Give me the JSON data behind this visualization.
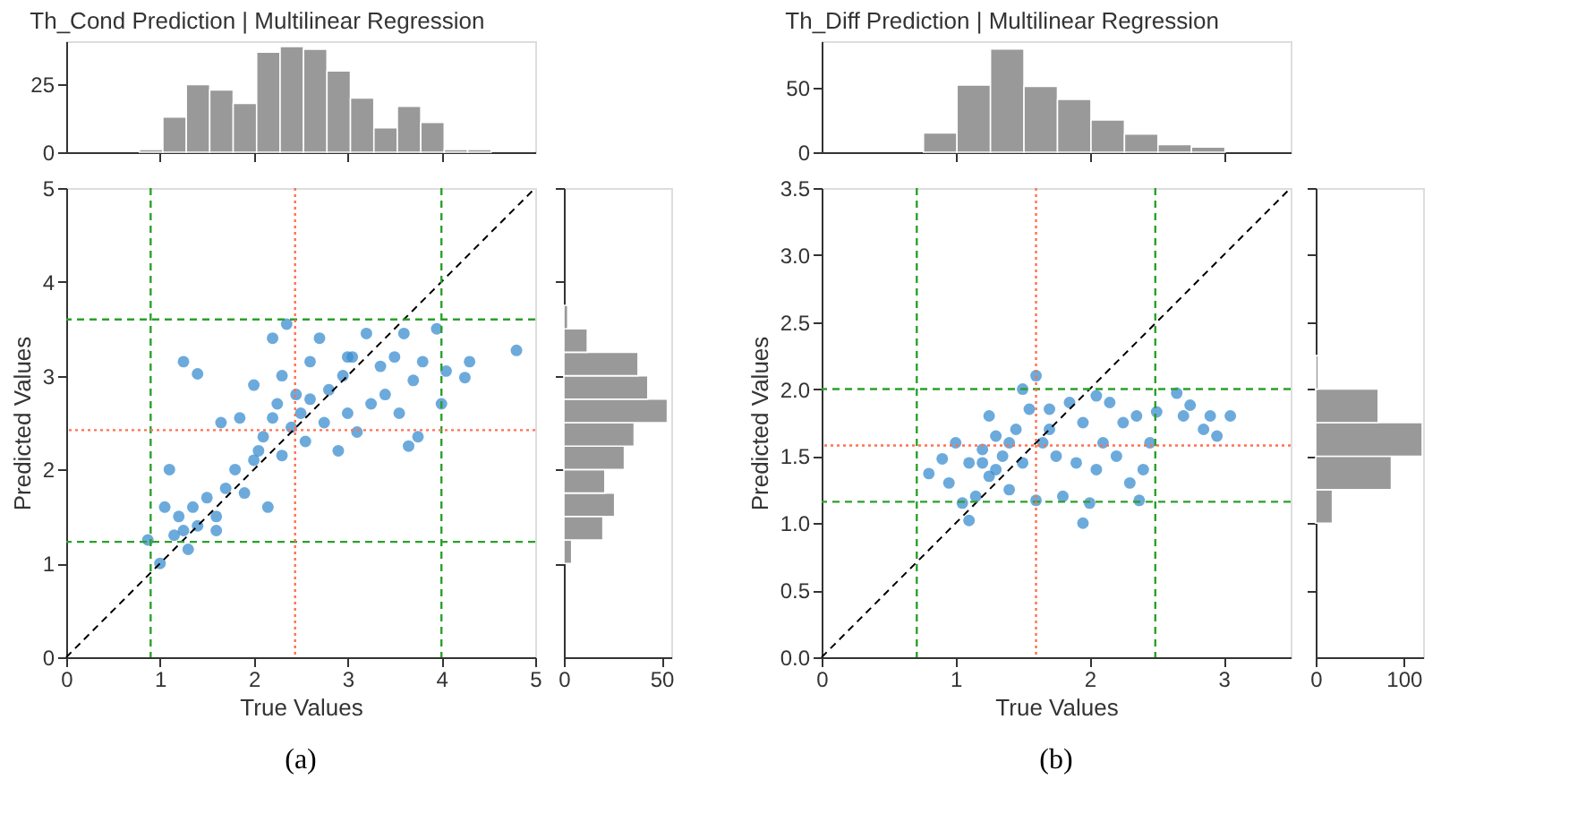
{
  "chart_data": [
    {
      "type": "scatter",
      "xlabel": "True Values",
      "ylabel": "Predicted Values",
      "annotations": [
        "(a)"
      ],
      "xlim": [
        0,
        5
      ],
      "ylim": [
        0,
        5
      ],
      "xticks": [
        0,
        1,
        2,
        3,
        4,
        5
      ],
      "yticks": [
        0,
        1,
        2,
        3,
        4,
        5
      ],
      "series": [
        {
          "type": "scatter",
          "marker": "circle",
          "color": "#3b8ed0",
          "x": [
            0.87,
            1.0,
            1.05,
            1.1,
            1.25,
            1.4,
            1.15,
            1.2,
            1.3,
            1.35,
            1.4,
            1.5,
            1.6,
            1.65,
            1.7,
            1.8,
            1.9,
            1.85,
            2.0,
            2.05,
            2.1,
            2.15,
            2.2,
            2.25,
            2.3,
            2.35,
            2.3,
            2.4,
            2.5,
            2.55,
            2.6,
            2.7,
            2.75,
            2.8,
            2.9,
            2.95,
            3.0,
            3.05,
            3.1,
            3.2,
            3.25,
            3.35,
            3.4,
            3.5,
            3.55,
            3.6,
            3.65,
            3.7,
            3.8,
            3.75,
            3.95,
            4.0,
            4.05,
            4.3,
            4.25,
            4.8,
            2.2,
            2.6,
            1.6,
            2.0,
            2.45,
            3.0,
            1.25
          ],
          "values": [
            1.25,
            1.0,
            1.6,
            2.0,
            3.15,
            3.02,
            1.3,
            1.5,
            1.15,
            1.6,
            1.4,
            1.7,
            1.35,
            2.5,
            1.8,
            2.0,
            1.75,
            2.55,
            2.9,
            2.2,
            2.35,
            1.6,
            3.4,
            2.7,
            3.0,
            3.55,
            2.15,
            2.45,
            2.6,
            2.3,
            3.15,
            3.4,
            2.5,
            2.85,
            2.2,
            3.0,
            2.6,
            3.2,
            2.4,
            3.45,
            2.7,
            3.1,
            2.8,
            3.2,
            2.6,
            3.45,
            2.25,
            2.95,
            3.15,
            2.35,
            3.5,
            2.7,
            3.05,
            3.15,
            2.98,
            3.27,
            2.55,
            2.75,
            1.5,
            2.1,
            2.8,
            3.2,
            1.35
          ]
        },
        {
          "type": "line",
          "color": "#000000",
          "line_style": "dashed",
          "x": [
            0,
            5
          ],
          "values": [
            0,
            5
          ]
        }
      ],
      "ref_lines": [
        {
          "axis": "x",
          "value": 0.9,
          "color": "#2ca02c",
          "line_style": "dashed"
        },
        {
          "axis": "x",
          "value": 4.0,
          "color": "#2ca02c",
          "line_style": "dashed"
        },
        {
          "axis": "y",
          "value": 1.23,
          "color": "#2ca02c",
          "line_style": "dashed"
        },
        {
          "axis": "y",
          "value": 3.6,
          "color": "#2ca02c",
          "line_style": "dashed"
        },
        {
          "axis": "x",
          "value": 2.44,
          "color": "#ff7050",
          "line_style": "dotted"
        },
        {
          "axis": "y",
          "value": 2.42,
          "color": "#ff7050",
          "line_style": "dotted"
        }
      ]
    },
    {
      "type": "histogram",
      "title": "Th_Cond Prediction | Multilinear Regression",
      "color": "#999999",
      "bins": [
        0.78,
        1.03,
        1.28,
        1.53,
        1.78,
        2.03,
        2.28,
        2.53,
        2.78,
        3.03,
        3.28,
        3.53,
        3.78,
        4.03,
        4.28,
        4.53
      ],
      "values": [
        1,
        13,
        25,
        23,
        18,
        37,
        39,
        38,
        30,
        20,
        9,
        17,
        11,
        1,
        1
      ],
      "xlim": [
        0,
        5
      ],
      "xticks": [
        1,
        2,
        3,
        4
      ],
      "ylim": [
        0,
        41
      ],
      "yticks": [
        0,
        25
      ],
      "tick_labels": "y"
    },
    {
      "type": "histogram",
      "orientation": "horizontal",
      "color": "#999999",
      "bins": [
        1.0,
        1.25,
        1.5,
        1.75,
        2.0,
        2.25,
        2.5,
        2.75,
        3.0,
        3.25,
        3.5,
        3.75
      ],
      "values": [
        4,
        20,
        26,
        21,
        31,
        36,
        53,
        43,
        38,
        12,
        2
      ],
      "xlim": [
        0,
        55
      ],
      "xticks": [
        0,
        50
      ],
      "ylim": [
        0,
        5
      ],
      "yticks": [
        1,
        2,
        3,
        4,
        5
      ],
      "tick_labels": "x"
    },
    {
      "type": "scatter",
      "xlabel": "True Values",
      "ylabel": "Predicted Values",
      "annotations": [
        "(b)"
      ],
      "xlim": [
        0,
        3.5
      ],
      "ylim": [
        0,
        3.5
      ],
      "xticks": [
        0,
        1,
        2,
        3
      ],
      "yticks": [
        {
          "value": 0,
          "label": "0.0"
        },
        {
          "value": 0.5,
          "label": "0.5"
        },
        {
          "value": 1,
          "label": "1.0"
        },
        {
          "value": 1.5,
          "label": "1.5"
        },
        {
          "value": 2,
          "label": "2.0"
        },
        {
          "value": 2.5,
          "label": "2.5"
        },
        {
          "value": 3,
          "label": "3.0"
        },
        {
          "value": 3.5,
          "label": "3.5"
        }
      ],
      "series": [
        {
          "type": "scatter",
          "marker": "circle",
          "color": "#3b8ed0",
          "x": [
            0.8,
            0.9,
            0.95,
            1.0,
            1.05,
            1.1,
            1.1,
            1.15,
            1.2,
            1.25,
            1.25,
            1.3,
            1.35,
            1.4,
            1.45,
            1.5,
            1.5,
            1.55,
            1.6,
            1.6,
            1.65,
            1.7,
            1.75,
            1.8,
            1.85,
            1.9,
            1.95,
            1.95,
            2.0,
            2.05,
            2.05,
            2.1,
            2.15,
            2.2,
            2.25,
            2.3,
            2.35,
            2.4,
            2.45,
            2.5,
            2.65,
            2.7,
            2.75,
            2.85,
            2.9,
            2.95,
            3.05,
            1.2,
            1.4,
            1.7,
            2.37,
            1.3
          ],
          "values": [
            1.37,
            1.48,
            1.3,
            1.6,
            1.15,
            1.02,
            1.45,
            1.2,
            1.55,
            1.8,
            1.35,
            1.65,
            1.5,
            1.25,
            1.7,
            2.0,
            1.45,
            1.85,
            2.1,
            1.17,
            1.6,
            1.85,
            1.5,
            1.2,
            1.9,
            1.45,
            1.0,
            1.75,
            1.15,
            1.95,
            1.4,
            1.6,
            1.9,
            1.5,
            1.75,
            1.3,
            1.8,
            1.4,
            1.6,
            1.83,
            1.97,
            1.8,
            1.88,
            1.7,
            1.8,
            1.65,
            1.8,
            1.45,
            1.6,
            1.7,
            1.17,
            1.4
          ]
        },
        {
          "type": "line",
          "color": "#000000",
          "line_style": "dashed",
          "x": [
            0,
            3.5
          ],
          "values": [
            0,
            3.5
          ]
        }
      ],
      "ref_lines": [
        {
          "axis": "x",
          "value": 0.71,
          "color": "#2ca02c",
          "line_style": "dashed"
        },
        {
          "axis": "x",
          "value": 2.49,
          "color": "#2ca02c",
          "line_style": "dashed"
        },
        {
          "axis": "y",
          "value": 1.16,
          "color": "#2ca02c",
          "line_style": "dashed"
        },
        {
          "axis": "y",
          "value": 2.0,
          "color": "#2ca02c",
          "line_style": "dashed"
        },
        {
          "axis": "x",
          "value": 1.6,
          "color": "#ff7050",
          "line_style": "dotted"
        },
        {
          "axis": "y",
          "value": 1.58,
          "color": "#ff7050",
          "line_style": "dotted"
        }
      ]
    },
    {
      "type": "histogram",
      "title": "Th_Diff Prediction | Multilinear Regression",
      "color": "#999999",
      "bins": [
        0.76,
        1.01,
        1.26,
        1.51,
        1.76,
        2.01,
        2.26,
        2.51,
        2.76,
        3.01
      ],
      "values": [
        15,
        52,
        80,
        51,
        41,
        25,
        14,
        6,
        4
      ],
      "xlim": [
        0,
        3.5
      ],
      "xticks": [
        1,
        2,
        3
      ],
      "ylim": [
        0,
        86
      ],
      "yticks": [
        0,
        50
      ],
      "tick_labels": "y"
    },
    {
      "type": "histogram",
      "orientation": "horizontal",
      "color": "#999999",
      "bins": [
        1.0,
        1.25,
        1.5,
        1.75,
        2.0,
        2.25
      ],
      "values": [
        19,
        86,
        121,
        71,
        3
      ],
      "xlim": [
        0,
        122
      ],
      "xticks": [
        0,
        100
      ],
      "ylim": [
        0,
        3.5
      ],
      "yticks": [
        0.5,
        1,
        1.5,
        2,
        2.5,
        3,
        3.5
      ],
      "tick_labels": "x"
    }
  ]
}
